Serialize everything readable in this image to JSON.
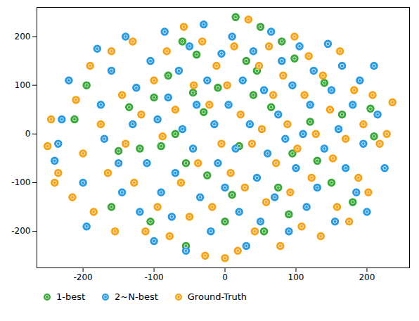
{
  "chart_data": {
    "type": "scatter",
    "xlim": [
      -265,
      260
    ],
    "xticks": [
      -200,
      -100,
      0,
      100,
      200
    ],
    "ylim": [
      -275,
      260
    ],
    "yticks": [
      -200,
      -100,
      0,
      100,
      200
    ],
    "grid": false,
    "legend": "lower left",
    "series": [
      {
        "name": "1-best",
        "color": "#3aa83a",
        "marker": "o",
        "values": [
          [
            15,
            240
          ],
          [
            50,
            220
          ],
          [
            80,
            190
          ],
          [
            -195,
            100
          ],
          [
            -212,
            30
          ],
          [
            -45,
            85
          ],
          [
            -80,
            120
          ],
          [
            -60,
            190
          ],
          [
            -40,
            163
          ],
          [
            -10,
            95
          ],
          [
            30,
            150
          ],
          [
            45,
            130
          ],
          [
            98,
            155
          ],
          [
            140,
            105
          ],
          [
            205,
            52
          ],
          [
            210,
            -5
          ],
          [
            180,
            -140
          ],
          [
            130,
            -55
          ],
          [
            95,
            -40
          ],
          [
            90,
            -165
          ],
          [
            55,
            -200
          ],
          [
            10,
            -125
          ],
          [
            -25,
            -85
          ],
          [
            -55,
            -60
          ],
          [
            -90,
            -25
          ],
          [
            -120,
            -30
          ],
          [
            -160,
            -150
          ],
          [
            -150,
            -35
          ],
          [
            -105,
            -180
          ],
          [
            -55,
            -230
          ],
          [
            -70,
            0
          ],
          [
            -30,
            45
          ],
          [
            20,
            -25
          ],
          [
            40,
            80
          ],
          [
            165,
            40
          ],
          [
            150,
            -100
          ],
          [
            75,
            -110
          ],
          [
            -135,
            55
          ],
          [
            65,
            55
          ],
          [
            -100,
            75
          ],
          [
            120,
            25
          ],
          [
            0,
            -180
          ]
        ]
      },
      {
        "name": "2~N-best",
        "color": "#2b9be0",
        "marker": "o",
        "values": [
          [
            -240,
            -55
          ],
          [
            -230,
            30
          ],
          [
            -220,
            110
          ],
          [
            -200,
            -100
          ],
          [
            -195,
            -190
          ],
          [
            -180,
            175
          ],
          [
            -175,
            60
          ],
          [
            -170,
            -10
          ],
          [
            -160,
            130
          ],
          [
            -150,
            -60
          ],
          [
            -145,
            -120
          ],
          [
            -140,
            200
          ],
          [
            -130,
            20
          ],
          [
            -125,
            95
          ],
          [
            -120,
            -160
          ],
          [
            -110,
            -60
          ],
          [
            -105,
            150
          ],
          [
            -100,
            -220
          ],
          [
            -95,
            30
          ],
          [
            -90,
            -120
          ],
          [
            -85,
            210
          ],
          [
            -80,
            75
          ],
          [
            -75,
            -170
          ],
          [
            -70,
            -80
          ],
          [
            -65,
            130
          ],
          [
            -60,
            10
          ],
          [
            -55,
            -240
          ],
          [
            -50,
            180
          ],
          [
            -45,
            -30
          ],
          [
            -40,
            60
          ],
          [
            -35,
            -130
          ],
          [
            -30,
            225
          ],
          [
            -25,
            110
          ],
          [
            -20,
            -200
          ],
          [
            -15,
            20
          ],
          [
            -10,
            -60
          ],
          [
            -5,
            165
          ],
          [
            0,
            -110
          ],
          [
            5,
            60
          ],
          [
            10,
            200
          ],
          [
            15,
            -30
          ],
          [
            20,
            -160
          ],
          [
            25,
            110
          ],
          [
            30,
            -230
          ],
          [
            35,
            20
          ],
          [
            40,
            170
          ],
          [
            45,
            -90
          ],
          [
            50,
            -180
          ],
          [
            55,
            90
          ],
          [
            60,
            -40
          ],
          [
            65,
            210
          ],
          [
            70,
            -130
          ],
          [
            75,
            40
          ],
          [
            80,
            150
          ],
          [
            85,
            -10
          ],
          [
            90,
            -200
          ],
          [
            95,
            100
          ],
          [
            100,
            -70
          ],
          [
            105,
            180
          ],
          [
            110,
            0
          ],
          [
            115,
            -150
          ],
          [
            120,
            60
          ],
          [
            125,
            130
          ],
          [
            130,
            -110
          ],
          [
            140,
            -30
          ],
          [
            145,
            185
          ],
          [
            150,
            90
          ],
          [
            155,
            -180
          ],
          [
            160,
            10
          ],
          [
            165,
            140
          ],
          [
            170,
            -70
          ],
          [
            180,
            60
          ],
          [
            185,
            -120
          ],
          [
            190,
            110
          ],
          [
            195,
            -20
          ],
          [
            200,
            -160
          ],
          [
            210,
            140
          ],
          [
            215,
            40
          ],
          [
            225,
            -70
          ],
          [
            -235,
            -20
          ]
        ]
      },
      {
        "name": "Ground-Truth",
        "color": "#f5a31a",
        "marker": "o",
        "values": [
          [
            -250,
            -25
          ],
          [
            -245,
            30
          ],
          [
            -235,
            -80
          ],
          [
            -215,
            -130
          ],
          [
            -210,
            70
          ],
          [
            -200,
            -40
          ],
          [
            -190,
            140
          ],
          [
            -185,
            -160
          ],
          [
            -175,
            20
          ],
          [
            -165,
            -80
          ],
          [
            -160,
            170
          ],
          [
            -155,
            -200
          ],
          [
            -145,
            80
          ],
          [
            -140,
            -20
          ],
          [
            -130,
            190
          ],
          [
            -128,
            -100
          ],
          [
            -118,
            40
          ],
          [
            -112,
            -200
          ],
          [
            -100,
            110
          ],
          [
            -95,
            -150
          ],
          [
            -88,
            -5
          ],
          [
            -82,
            170
          ],
          [
            -78,
            -210
          ],
          [
            -70,
            50
          ],
          [
            -62,
            -100
          ],
          [
            -58,
            220
          ],
          [
            -50,
            -170
          ],
          [
            -44,
            100
          ],
          [
            -38,
            -60
          ],
          [
            -32,
            190
          ],
          [
            -28,
            -250
          ],
          [
            -22,
            60
          ],
          [
            -18,
            -150
          ],
          [
            -12,
            140
          ],
          [
            -5,
            -20
          ],
          [
            0,
            -255
          ],
          [
            3,
            100
          ],
          [
            8,
            -80
          ],
          [
            13,
            180
          ],
          [
            18,
            -240
          ],
          [
            22,
            40
          ],
          [
            28,
            -110
          ],
          [
            33,
            235
          ],
          [
            38,
            -20
          ],
          [
            42,
            -200
          ],
          [
            48,
            140
          ],
          [
            52,
            10
          ],
          [
            58,
            -140
          ],
          [
            62,
            180
          ],
          [
            68,
            80
          ],
          [
            72,
            -60
          ],
          [
            78,
            -230
          ],
          [
            82,
            120
          ],
          [
            88,
            20
          ],
          [
            92,
            -120
          ],
          [
            98,
            200
          ],
          [
            102,
            -30
          ],
          [
            108,
            -190
          ],
          [
            112,
            80
          ],
          [
            118,
            160
          ],
          [
            122,
            -90
          ],
          [
            128,
            0
          ],
          [
            135,
            -210
          ],
          [
            138,
            120
          ],
          [
            148,
            50
          ],
          [
            152,
            -50
          ],
          [
            158,
            -150
          ],
          [
            162,
            170
          ],
          [
            170,
            -10
          ],
          [
            175,
            -180
          ],
          [
            182,
            90
          ],
          [
            188,
            -90
          ],
          [
            195,
            20
          ],
          [
            202,
            -120
          ],
          [
            208,
            80
          ],
          [
            218,
            -20
          ],
          [
            228,
            0
          ],
          [
            236,
            65
          ],
          [
            -240,
            -100
          ]
        ]
      }
    ]
  }
}
